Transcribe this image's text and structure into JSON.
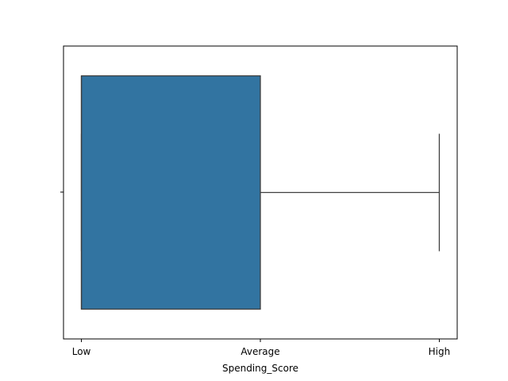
{
  "chart_data": {
    "type": "box",
    "orientation": "horizontal",
    "xlabel": "Spending_Score",
    "categories": [
      "Low",
      "Average",
      "High"
    ],
    "xlim": [
      -0.1,
      2.1
    ],
    "box": {
      "min": 0,
      "q1": 0,
      "median": 0,
      "q3": 1,
      "max": 2
    },
    "colors": {
      "box_fill": "#3274a1",
      "line": "#3f3f3f"
    }
  }
}
